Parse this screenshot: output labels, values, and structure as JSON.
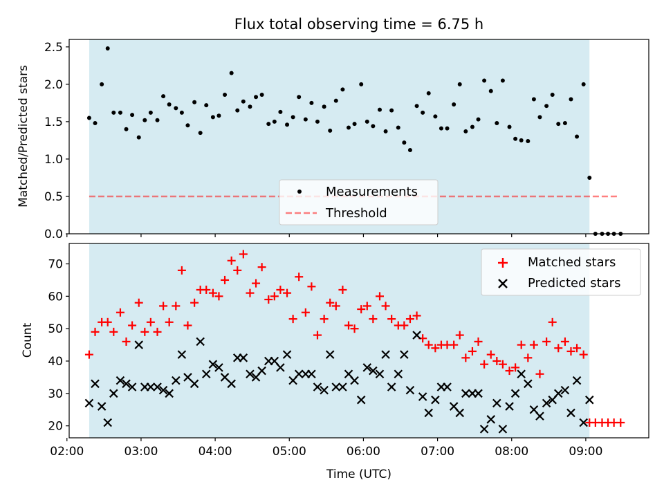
{
  "colors": {
    "band": "#add8e6",
    "measurement": "#000000",
    "threshold": "#ff0000",
    "matched": "#ff0000",
    "predicted": "#000000"
  },
  "chart_data": [
    {
      "type": "scatter",
      "title": "Flux total observing time = 6.75 h",
      "xlabel": "",
      "ylabel": "Matched/Predicted stars",
      "xlim": [
        2.03,
        9.85
      ],
      "ylim": [
        0.0,
        2.6
      ],
      "x_ticks": [
        "02:00",
        "03:00",
        "04:00",
        "05:00",
        "06:00",
        "07:00",
        "08:00",
        "09:00"
      ],
      "y_ticks": [
        "0.0",
        "0.5",
        "1.0",
        "1.5",
        "2.0",
        "2.5"
      ],
      "observing_window": [
        2.3,
        9.05
      ],
      "threshold": 0.5,
      "threshold_x_range": [
        2.3,
        9.45
      ],
      "legend": {
        "position": "lower center",
        "entries": [
          "Measurements",
          "Threshold"
        ]
      },
      "series": [
        {
          "name": "Measurements",
          "x": [
            2.3,
            2.38,
            2.47,
            2.55,
            2.63,
            2.72,
            2.8,
            2.88,
            2.97,
            3.05,
            3.13,
            3.22,
            3.3,
            3.38,
            3.47,
            3.55,
            3.63,
            3.72,
            3.8,
            3.88,
            3.97,
            4.05,
            4.13,
            4.22,
            4.3,
            4.38,
            4.47,
            4.55,
            4.63,
            4.72,
            4.8,
            4.88,
            4.97,
            5.05,
            5.13,
            5.22,
            5.3,
            5.38,
            5.47,
            5.55,
            5.63,
            5.72,
            5.8,
            5.88,
            5.97,
            6.05,
            6.13,
            6.22,
            6.3,
            6.38,
            6.47,
            6.55,
            6.63,
            6.72,
            6.8,
            6.88,
            6.97,
            7.05,
            7.13,
            7.22,
            7.3,
            7.38,
            7.47,
            7.55,
            7.63,
            7.72,
            7.8,
            7.88,
            7.97,
            8.05,
            8.13,
            8.22,
            8.3,
            8.38,
            8.47,
            8.55,
            8.63,
            8.72,
            8.8,
            8.88,
            8.97,
            9.05,
            9.13,
            9.22,
            9.3,
            9.38,
            9.47
          ],
          "y": [
            1.55,
            1.48,
            2.0,
            2.48,
            1.62,
            1.62,
            1.4,
            1.59,
            1.29,
            1.52,
            1.62,
            1.52,
            1.84,
            1.73,
            1.68,
            1.62,
            1.45,
            1.76,
            1.35,
            1.72,
            1.56,
            1.58,
            1.86,
            2.15,
            1.65,
            1.77,
            1.7,
            1.83,
            1.86,
            1.47,
            1.5,
            1.63,
            1.46,
            1.56,
            1.83,
            1.53,
            1.75,
            1.5,
            1.7,
            1.38,
            1.78,
            1.93,
            1.42,
            1.47,
            2.0,
            1.5,
            1.44,
            1.66,
            1.37,
            1.65,
            1.42,
            1.22,
            1.12,
            1.71,
            1.62,
            1.88,
            1.57,
            1.41,
            1.41,
            1.73,
            2.0,
            1.37,
            1.43,
            1.53,
            2.05,
            1.91,
            1.48,
            2.05,
            1.43,
            1.27,
            1.25,
            1.24,
            1.8,
            1.56,
            1.71,
            1.86,
            1.47,
            1.48,
            1.8,
            1.3,
            2.0,
            0.75,
            0.0,
            0.0,
            0.0,
            0.0,
            0.0
          ]
        }
      ]
    },
    {
      "type": "scatter",
      "title": "",
      "xlabel": "Time (UTC)",
      "ylabel": "Count",
      "xlim": [
        2.03,
        9.85
      ],
      "ylim": [
        16.3,
        76.3
      ],
      "x_ticks": [
        "02:00",
        "03:00",
        "04:00",
        "05:00",
        "06:00",
        "07:00",
        "08:00",
        "09:00"
      ],
      "y_ticks": [
        "20",
        "30",
        "40",
        "50",
        "60",
        "70"
      ],
      "observing_window": [
        2.3,
        9.05
      ],
      "legend": {
        "position": "upper right",
        "entries": [
          "Matched stars",
          "Predicted stars"
        ]
      },
      "series": [
        {
          "name": "Matched stars",
          "x": [
            2.3,
            2.38,
            2.47,
            2.55,
            2.63,
            2.72,
            2.8,
            2.88,
            2.97,
            3.05,
            3.13,
            3.22,
            3.3,
            3.38,
            3.47,
            3.55,
            3.63,
            3.72,
            3.8,
            3.88,
            3.97,
            4.05,
            4.13,
            4.22,
            4.3,
            4.38,
            4.47,
            4.55,
            4.63,
            4.72,
            4.8,
            4.88,
            4.97,
            5.05,
            5.13,
            5.22,
            5.3,
            5.38,
            5.47,
            5.55,
            5.63,
            5.72,
            5.8,
            5.88,
            5.97,
            6.05,
            6.13,
            6.22,
            6.3,
            6.38,
            6.47,
            6.55,
            6.63,
            6.72,
            6.8,
            6.88,
            6.97,
            7.05,
            7.13,
            7.22,
            7.3,
            7.38,
            7.47,
            7.55,
            7.63,
            7.72,
            7.8,
            7.88,
            7.97,
            8.05,
            8.13,
            8.22,
            8.3,
            8.38,
            8.47,
            8.55,
            8.63,
            8.72,
            8.8,
            8.88,
            8.97,
            9.05,
            9.13,
            9.22,
            9.3,
            9.38,
            9.47
          ],
          "y": [
            42,
            49,
            52,
            52,
            49,
            55,
            46,
            51,
            58,
            49,
            52,
            49,
            57,
            52,
            57,
            68,
            51,
            58,
            62,
            62,
            61,
            60,
            65,
            71,
            68,
            73,
            61,
            64,
            69,
            59,
            60,
            62,
            61,
            53,
            66,
            55,
            63,
            48,
            53,
            58,
            57,
            62,
            51,
            50,
            56,
            57,
            53,
            60,
            57,
            53,
            51,
            51,
            53,
            54,
            47,
            45,
            44,
            45,
            45,
            45,
            48,
            41,
            43,
            46,
            39,
            42,
            40,
            39,
            37,
            38,
            45,
            41,
            45,
            36,
            46,
            52,
            44,
            46,
            43,
            44,
            42,
            21,
            21,
            21,
            21,
            21,
            21
          ]
        },
        {
          "name": "Predicted stars",
          "x": [
            2.3,
            2.38,
            2.47,
            2.55,
            2.63,
            2.72,
            2.8,
            2.88,
            2.97,
            3.05,
            3.13,
            3.22,
            3.3,
            3.38,
            3.47,
            3.55,
            3.63,
            3.72,
            3.8,
            3.88,
            3.97,
            4.05,
            4.13,
            4.22,
            4.3,
            4.38,
            4.47,
            4.55,
            4.63,
            4.72,
            4.8,
            4.88,
            4.97,
            5.05,
            5.13,
            5.22,
            5.3,
            5.38,
            5.47,
            5.55,
            5.63,
            5.72,
            5.8,
            5.88,
            5.97,
            6.05,
            6.13,
            6.22,
            6.3,
            6.38,
            6.47,
            6.55,
            6.63,
            6.72,
            6.8,
            6.88,
            6.97,
            7.05,
            7.13,
            7.22,
            7.3,
            7.38,
            7.47,
            7.55,
            7.63,
            7.72,
            7.8,
            7.88,
            7.97,
            8.05,
            8.13,
            8.22,
            8.3,
            8.38,
            8.47,
            8.55,
            8.63,
            8.72,
            8.8,
            8.88,
            8.97,
            9.05
          ],
          "y": [
            27,
            33,
            26,
            21,
            30,
            34,
            33,
            32,
            45,
            32,
            32,
            32,
            31,
            30,
            34,
            42,
            35,
            33,
            46,
            36,
            39,
            38,
            35,
            33,
            41,
            41,
            36,
            35,
            37,
            40,
            40,
            38,
            42,
            34,
            36,
            36,
            36,
            32,
            31,
            42,
            32,
            32,
            36,
            34,
            28,
            38,
            37,
            36,
            42,
            32,
            36,
            42,
            31,
            48,
            29,
            24,
            28,
            32,
            32,
            26,
            24,
            30,
            30,
            30,
            19,
            22,
            27,
            19,
            26,
            30,
            36,
            33,
            25,
            23,
            27,
            28,
            30,
            31,
            24,
            34,
            21,
            28
          ]
        }
      ]
    }
  ]
}
